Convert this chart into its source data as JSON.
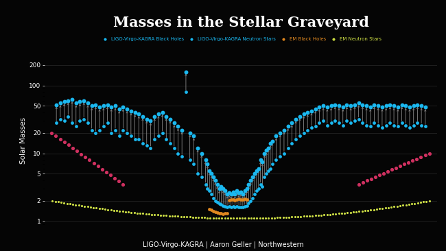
{
  "title": "Masses in the Stellar Graveyard",
  "subtitle": "LIGO-Virgo-KAGRA | Aaron Geller | Northwestern",
  "background_color": "#050505",
  "title_color": "#ffffff",
  "subtitle_color": "#ffffff",
  "grid_color": "#333333",
  "ylabel": "Solar Masses",
  "yticks": [
    1,
    2,
    5,
    10,
    20,
    50,
    100,
    200
  ],
  "ligo_bh_color": "#1ab8f0",
  "em_bh_color": "#e08820",
  "em_ns_color": "#ccdd44",
  "pink_color": "#d03060",
  "connector_color": "#888888",
  "legend_labels": [
    "LIGO-Virgo-KAGRA Black Holes",
    "LIGO-Virgo-KAGRA Neutron Stars",
    "EM Black Holes",
    "EM Neutron Stars"
  ],
  "legend_colors": [
    "#1ab8f0",
    "#1ab8f0",
    "#e08820",
    "#ccdd44"
  ]
}
